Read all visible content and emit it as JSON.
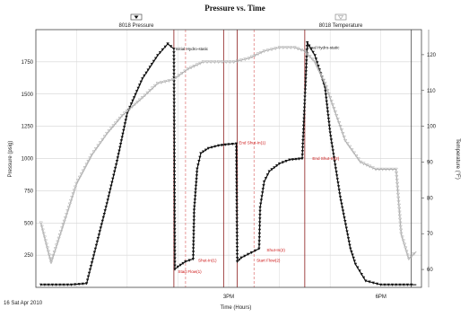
{
  "chart_data": {
    "type": "line",
    "title": "Pressure vs. Time",
    "xlabel": "Time (Hours)",
    "ylabel_left": "Pressure (psig)",
    "ylabel_right": "Temperature (°F)",
    "date_label": "16 Sat Apr 2010",
    "x_ticks": [
      "3PM",
      "6PM"
    ],
    "x_range_hours": [
      11.2,
      18.8
    ],
    "ylim_left": [
      0,
      2000
    ],
    "ylim_right": [
      55,
      127
    ],
    "yticks_left": [
      "250",
      "500",
      "750",
      "1000",
      "1250",
      "1500",
      "1750"
    ],
    "yticks_right": [
      "60",
      "70",
      "80",
      "90",
      "100",
      "110",
      "120"
    ],
    "grid": true,
    "legend": [
      {
        "name": "8018 Pressure",
        "color": "#111111",
        "marker": "triangle-down",
        "placement": "top-left"
      },
      {
        "name": "8018 Temperature",
        "color": "#aaaaaa",
        "marker": "triangle-down-open",
        "placement": "top-right"
      }
    ],
    "series": [
      {
        "name": "8018 Pressure",
        "axis": "left",
        "x": [
          11.3,
          11.6,
          11.9,
          12.2,
          12.6,
          12.8,
          13.0,
          13.3,
          13.6,
          13.8,
          13.92,
          13.94,
          14.0,
          14.15,
          14.3,
          14.32,
          14.38,
          14.45,
          14.6,
          14.8,
          15.0,
          15.15,
          15.17,
          15.25,
          15.45,
          15.6,
          15.62,
          15.7,
          15.8,
          16.0,
          16.2,
          16.45,
          16.55,
          16.7,
          16.9,
          17.0,
          17.2,
          17.4,
          17.5,
          17.7,
          18.0,
          18.3,
          18.6,
          18.7
        ],
        "y": [
          20,
          20,
          20,
          30,
          650,
          980,
          1350,
          1620,
          1800,
          1890,
          1850,
          140,
          160,
          200,
          220,
          600,
          920,
          1040,
          1080,
          1100,
          1110,
          1115,
          200,
          230,
          270,
          300,
          620,
          820,
          900,
          960,
          990,
          1000,
          1900,
          1800,
          1550,
          1200,
          700,
          300,
          180,
          50,
          20,
          20,
          20,
          20
        ]
      },
      {
        "name": "8018 Temperature",
        "axis": "right",
        "x": [
          11.3,
          11.5,
          12.0,
          12.3,
          12.6,
          12.9,
          13.3,
          13.6,
          13.9,
          14.2,
          14.5,
          14.8,
          15.1,
          15.4,
          15.7,
          16.0,
          16.3,
          16.5,
          16.7,
          16.9,
          17.1,
          17.3,
          17.6,
          17.9,
          18.1,
          18.3,
          18.4,
          18.55,
          18.7
        ],
        "y": [
          73,
          62,
          84,
          92,
          98,
          103,
          108,
          112,
          113,
          116,
          118,
          118,
          118,
          119,
          121,
          122,
          122,
          121,
          118,
          112,
          104,
          96,
          90,
          88,
          88,
          88,
          70,
          63,
          65
        ]
      }
    ],
    "vertical_markers": [
      {
        "x": 13.92,
        "style": "solid",
        "color": "#8b1a1a"
      },
      {
        "x": 14.15,
        "style": "dashed",
        "color": "#e08080"
      },
      {
        "x": 14.9,
        "style": "solid",
        "color": "#8b1a1a"
      },
      {
        "x": 15.17,
        "style": "solid",
        "color": "#8b1a1a"
      },
      {
        "x": 15.5,
        "style": "dashed",
        "color": "#e08080"
      },
      {
        "x": 16.5,
        "style": "solid",
        "color": "#8b1a1a"
      },
      {
        "x": 18.6,
        "style": "solid",
        "color": "#444444"
      }
    ],
    "annotations": [
      {
        "text": "Initial Hydro-static",
        "x": 13.95,
        "y": 1840,
        "color": "black"
      },
      {
        "text": "End Shut-In(1)",
        "x": 15.2,
        "y": 1110,
        "color": "red"
      },
      {
        "text": "Shut-In(1)",
        "x": 14.4,
        "y": 200,
        "color": "red"
      },
      {
        "text": "Start Flow(1)",
        "x": 14.0,
        "y": 110,
        "color": "red"
      },
      {
        "text": "End Shut-In(2)",
        "x": 16.65,
        "y": 990,
        "color": "red"
      },
      {
        "text": "Shut-In(2)",
        "x": 15.75,
        "y": 280,
        "color": "red"
      },
      {
        "text": "Start Flow(2)",
        "x": 15.55,
        "y": 200,
        "color": "red"
      },
      {
        "text": "Final Hydro-static",
        "x": 16.55,
        "y": 1850,
        "color": "black"
      }
    ]
  }
}
